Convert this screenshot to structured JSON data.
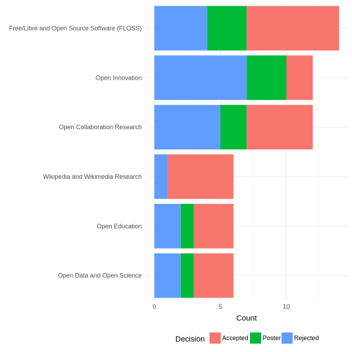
{
  "chart_data": {
    "type": "bar",
    "orientation": "horizontal",
    "stacked": true,
    "categories": [
      "Free/Libre and Open Source Software (FLOSS)",
      "Open Innovation",
      "Open Collaboration Research",
      "Wikipedia and Wikimedia Research",
      "Open Education",
      "Open Data and Open Science"
    ],
    "series": [
      {
        "name": "Rejected",
        "color": "#619CFF",
        "values": [
          4,
          7,
          5,
          1,
          2,
          2
        ]
      },
      {
        "name": "Poster",
        "color": "#00BA38",
        "values": [
          3,
          3,
          2,
          0,
          1,
          1
        ]
      },
      {
        "name": "Accepted",
        "color": "#F8766D",
        "values": [
          7,
          2,
          5,
          5,
          3,
          3
        ]
      }
    ],
    "xlabel": "Count",
    "ylabel": "",
    "xlim": [
      0,
      14.7
    ],
    "xticks": [
      0,
      5,
      10
    ],
    "xtick_labels": [
      "0",
      "5",
      "10"
    ],
    "grid": true,
    "legend": {
      "title": "Decision",
      "position": "bottom",
      "order": [
        "Accepted",
        "Poster",
        "Rejected"
      ]
    }
  }
}
